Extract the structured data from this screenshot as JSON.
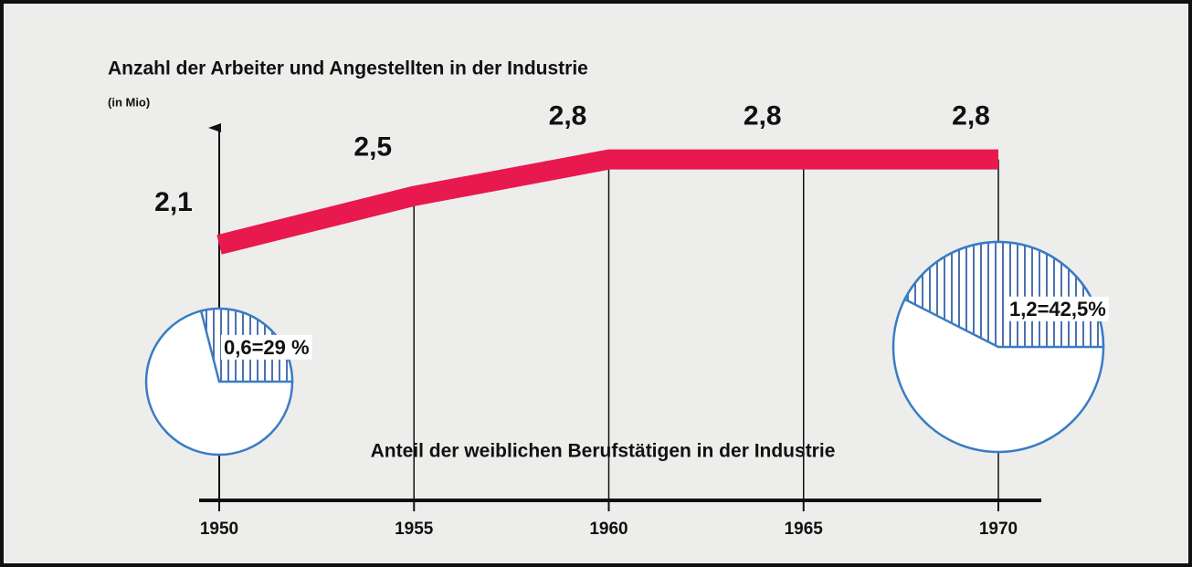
{
  "chart_data": [
    {
      "type": "line",
      "title": "Anzahl der Arbeiter und Angestellten in der Industrie",
      "subtitle": "(in Mio)",
      "annotation": "Anteil der weiblichen Berufstätigen in der Industrie",
      "x": [
        1950,
        1955,
        1960,
        1965,
        1970
      ],
      "values": [
        2.1,
        2.5,
        2.8,
        2.8,
        2.8
      ],
      "value_labels": [
        "2,1",
        "2,5",
        "2,8",
        "2,8",
        "2,8"
      ],
      "color": "#e8194f",
      "xlim": [
        1950,
        1970
      ],
      "xticks": [
        1950,
        1955,
        1960,
        1965,
        1970
      ],
      "ylim": [
        0,
        3
      ]
    },
    {
      "type": "pie",
      "values": [
        29
      ],
      "value_labels": [
        "0,6=29 %"
      ],
      "color": "#3a7cc4"
    },
    {
      "type": "pie",
      "values": [
        42.5
      ],
      "value_labels": [
        "1,2=42,5%"
      ],
      "color": "#3a7cc4"
    }
  ]
}
